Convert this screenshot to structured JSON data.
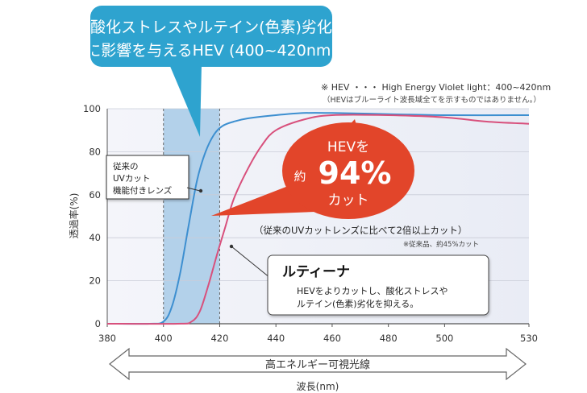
{
  "chart_data": {
    "type": "line",
    "xlabel": "波長(nm)",
    "ylabel": "透過率(%)",
    "xlim": [
      380,
      530
    ],
    "ylim": [
      0,
      100
    ],
    "x_ticks": [
      380,
      400,
      420,
      440,
      460,
      480,
      500,
      530
    ],
    "y_ticks": [
      0,
      20,
      40,
      60,
      80,
      100
    ],
    "hev_band": [
      400,
      420
    ],
    "series": [
      {
        "name": "従来のUVカット機能付きレンズ",
        "color": "#3d8fd0",
        "x": [
          380,
          395,
          400,
          403,
          406,
          409,
          412,
          415,
          418,
          421,
          425,
          430,
          440,
          450,
          460,
          480,
          500,
          530
        ],
        "y": [
          0,
          0,
          1,
          8,
          24,
          46,
          67,
          80,
          88,
          92,
          94,
          95.5,
          97,
          98,
          98,
          97.5,
          97,
          97
        ]
      },
      {
        "name": "ルティーナ",
        "color": "#d8507c",
        "x": [
          380,
          405,
          410,
          413,
          416,
          419,
          422,
          425,
          430,
          435,
          440,
          450,
          460,
          480,
          500,
          515,
          530
        ],
        "y": [
          0,
          0,
          1,
          6,
          18,
          32,
          45,
          58,
          72,
          83,
          90,
          95,
          97,
          97,
          96,
          94,
          93
        ]
      }
    ]
  },
  "callout_top": {
    "line1": "酸化ストレスやルテイン(色素)劣化",
    "line2": "に影響を与えるHEV (400~420nm)"
  },
  "note": {
    "line1": "※ HEV ・・・ High Energy Violet light：400~420nm",
    "line2": "（HEVはブルーライト波長域全てを示すものではありません。）"
  },
  "label_conventional": {
    "line1": "従来の",
    "line2": "UVカット",
    "line3": "機能付きレンズ"
  },
  "burst": {
    "line1": "HEVを",
    "prefix": "約",
    "value": "94%",
    "line3": "カット"
  },
  "comparison": {
    "main": "（従来のUVカットレンズに比べて2倍以上カット）",
    "sub": "※従来品、約45%カット"
  },
  "lutina_box": {
    "title": "ルティーナ",
    "line1": "HEVをよりカットし、酸化ストレスや",
    "line2": "ルテイン(色素)劣化を抑える。"
  },
  "spectrum_label": "高エネルギー可視光線",
  "colors": {
    "callout": "#2ea3cf",
    "band": "#9ec6e4",
    "burst": "#e2452a",
    "plot_bg": "#eef0f7"
  }
}
